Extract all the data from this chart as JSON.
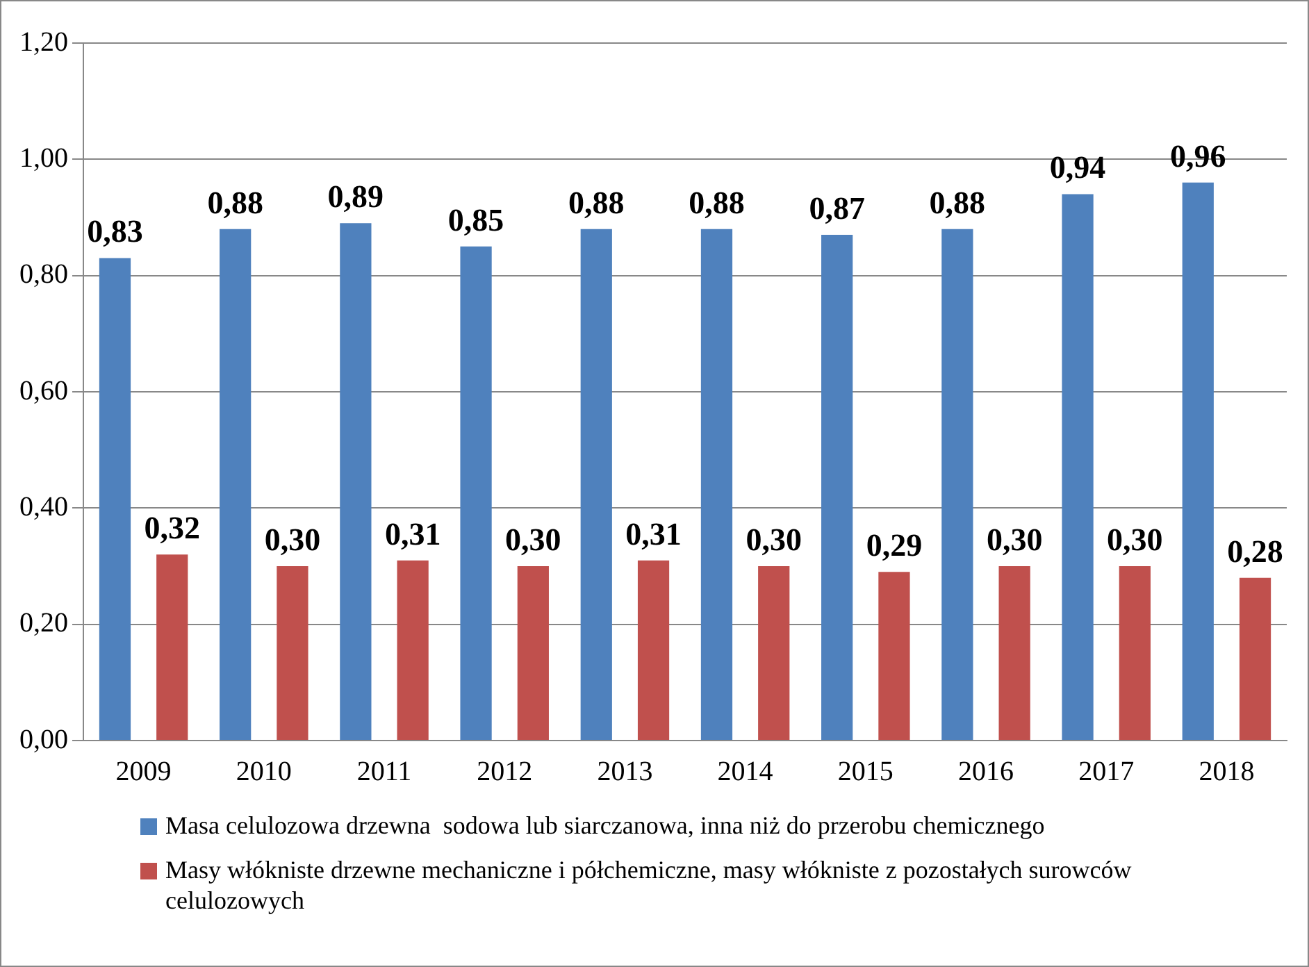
{
  "chart_data": {
    "type": "bar",
    "categories": [
      "2009",
      "2010",
      "2011",
      "2012",
      "2013",
      "2014",
      "2015",
      "2016",
      "2017",
      "2018"
    ],
    "series": [
      {
        "name": "Masa celulozowa drzewna  sodowa lub siarczanowa, inna niż do przerobu chemicznego",
        "color": "#4f81bd",
        "values": [
          0.83,
          0.88,
          0.89,
          0.85,
          0.88,
          0.88,
          0.87,
          0.88,
          0.94,
          0.96
        ],
        "value_labels": [
          "0,83",
          "0,88",
          "0,89",
          "0,85",
          "0,88",
          "0,88",
          "0,87",
          "0,88",
          "0,94",
          "0,96"
        ]
      },
      {
        "name": "Masy włókniste drzewne mechaniczne i półchemiczne, masy włókniste z pozostałych surowców celulozowych",
        "color": "#c0504d",
        "values": [
          0.32,
          0.3,
          0.31,
          0.3,
          0.31,
          0.3,
          0.29,
          0.3,
          0.3,
          0.28
        ],
        "value_labels": [
          "0,32",
          "0,30",
          "0,31",
          "0,30",
          "0,31",
          "0,30",
          "0,29",
          "0,30",
          "0,30",
          "0,28"
        ]
      }
    ],
    "ylim": [
      0,
      1.2
    ],
    "yticks": [
      {
        "value": 0,
        "label": "0,00"
      },
      {
        "value": 0.2,
        "label": "0,20"
      },
      {
        "value": 0.4,
        "label": "0,40"
      },
      {
        "value": 0.6,
        "label": "0,60"
      },
      {
        "value": 0.8,
        "label": "0,80"
      },
      {
        "value": 1.0,
        "label": "1,00"
      },
      {
        "value": 1.2,
        "label": "1,20"
      }
    ],
    "grid": "y",
    "legend": "bottom"
  }
}
